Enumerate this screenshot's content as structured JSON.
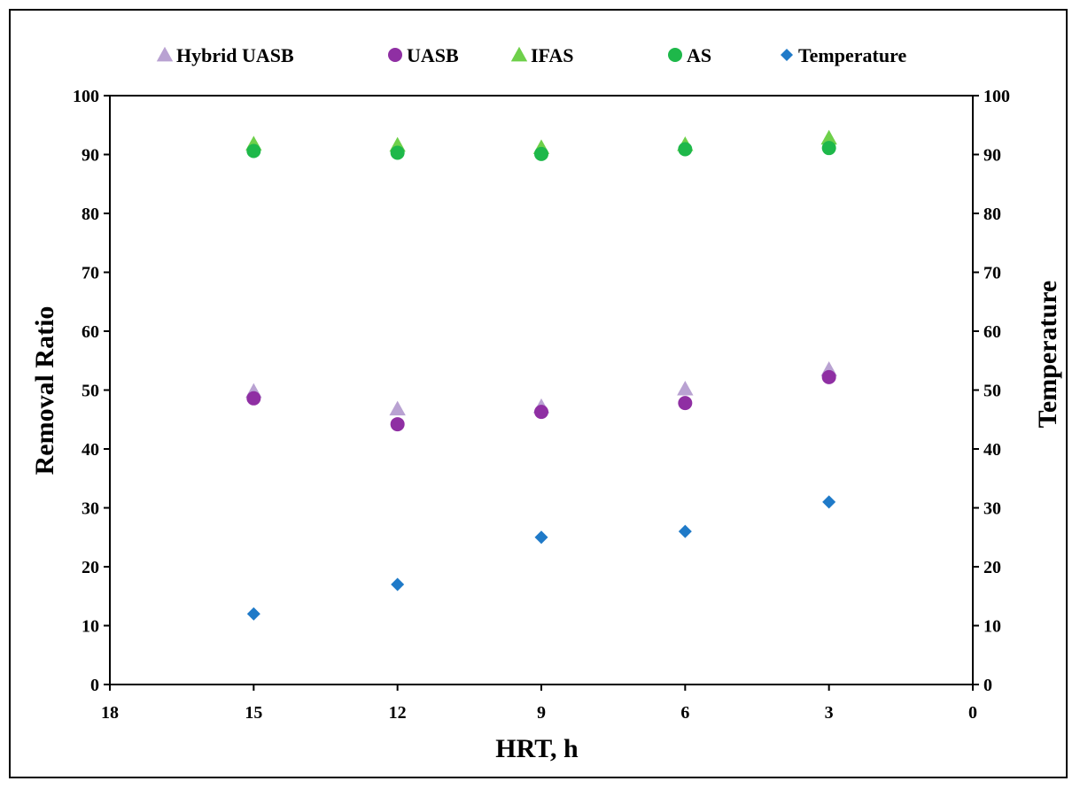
{
  "chart_data": {
    "type": "scatter",
    "xlabel": "HRT, h",
    "ylabel": "Removal Ratio",
    "y2label": "Temperature",
    "x_axis_reversed": true,
    "xlim": [
      0,
      18
    ],
    "xticks": [
      "18",
      "15",
      "12",
      "9",
      "6",
      "3",
      "0"
    ],
    "ylim": [
      0,
      100
    ],
    "yticks": [
      "0",
      "10",
      "20",
      "30",
      "40",
      "50",
      "60",
      "70",
      "80",
      "90",
      "100"
    ],
    "y2lim": [
      0,
      100
    ],
    "y2ticks": [
      "0",
      "10",
      "20",
      "30",
      "40",
      "50",
      "60",
      "70",
      "80",
      "90",
      "100"
    ],
    "grid": false,
    "legend_position": "top",
    "series": [
      {
        "name": "Hybrid UASB",
        "marker": "triangle",
        "color": "#b9a2d2",
        "axis": "left",
        "x": [
          15,
          12,
          9,
          6,
          3
        ],
        "y": [
          49.8,
          46.8,
          47.2,
          50.2,
          53.5
        ]
      },
      {
        "name": "UASB",
        "marker": "circle",
        "color": "#8f2fa3",
        "axis": "left",
        "x": [
          15,
          12,
          9,
          6,
          3
        ],
        "y": [
          48.6,
          44.2,
          46.3,
          47.8,
          52.2
        ]
      },
      {
        "name": "IFAS",
        "marker": "triangle",
        "color": "#6ed04a",
        "axis": "left",
        "x": [
          15,
          12,
          9,
          6,
          3
        ],
        "y": [
          91.8,
          91.6,
          91.2,
          91.7,
          92.8
        ]
      },
      {
        "name": "AS",
        "marker": "circle",
        "color": "#1eb84a",
        "axis": "left",
        "x": [
          15,
          12,
          9,
          6,
          3
        ],
        "y": [
          90.6,
          90.3,
          90.1,
          90.9,
          91.1
        ]
      },
      {
        "name": "Temperature",
        "marker": "diamond",
        "color": "#1f7ac8",
        "axis": "right",
        "x": [
          15,
          12,
          9,
          6,
          3
        ],
        "y": [
          12,
          17,
          25,
          26,
          31
        ]
      }
    ]
  }
}
